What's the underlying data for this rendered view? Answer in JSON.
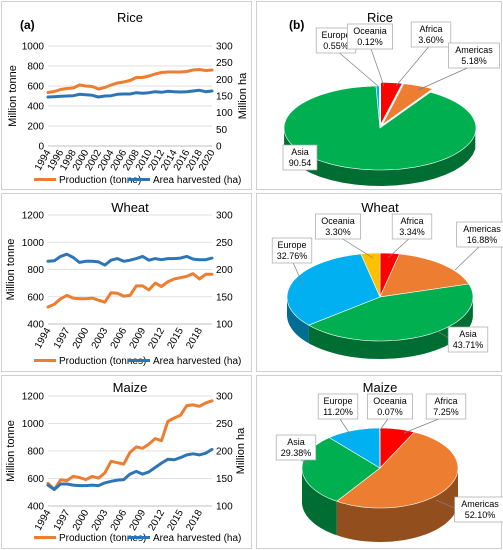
{
  "panels": {
    "left": "(a)",
    "right": "(b)"
  },
  "colors": {
    "production": "#ED7D31",
    "area": "#2E75B6",
    "Asia": "#00B050",
    "Americas": "#ED7D31",
    "Africa": "#FF0000",
    "Oceania": "#FFC000",
    "Europe": "#00B0F0"
  },
  "chart_data": [
    {
      "id": "rice-line",
      "type": "line",
      "title": "Rice",
      "ylabel": "Million tonne",
      "y2label": "Million ha",
      "ylim": [
        0,
        1000
      ],
      "y2lim": [
        0,
        300
      ],
      "yticks": [
        "0",
        "200",
        "400",
        "600",
        "800",
        "1000"
      ],
      "y2ticks": [
        "0",
        "50",
        "100",
        "150",
        "200",
        "250",
        "300"
      ],
      "x": [
        1994,
        1995,
        1996,
        1997,
        1998,
        1999,
        2000,
        2001,
        2002,
        2003,
        2004,
        2005,
        2006,
        2007,
        2008,
        2009,
        2010,
        2011,
        2012,
        2013,
        2014,
        2015,
        2016,
        2017,
        2018,
        2019,
        2020
      ],
      "xticks": [
        "1994",
        "1996",
        "1998",
        "2000",
        "2002",
        "2004",
        "2006",
        "2008",
        "2010",
        "2012",
        "2014",
        "2016",
        "2018",
        "2020"
      ],
      "series": [
        {
          "name": "Production (tonne)",
          "axis": "left",
          "color": "#ED7D31",
          "values": [
            535,
            545,
            565,
            575,
            580,
            610,
            600,
            595,
            570,
            585,
            610,
            630,
            640,
            655,
            685,
            685,
            700,
            720,
            735,
            740,
            740,
            740,
            745,
            760,
            765,
            755,
            760
          ]
        },
        {
          "name": "Area harvested (ha)",
          "axis": "right",
          "color": "#2E75B6",
          "values": [
            147,
            148,
            149,
            150,
            151,
            155,
            154,
            152,
            147,
            150,
            151,
            155,
            156,
            156,
            160,
            158,
            160,
            163,
            161,
            164,
            163,
            162,
            163,
            165,
            167,
            163,
            165
          ]
        }
      ]
    },
    {
      "id": "wheat-line",
      "type": "line",
      "title": "Wheat",
      "ylabel": "Million tonne",
      "ylim": [
        400,
        1200
      ],
      "y2lim": [
        100,
        300
      ],
      "yticks": [
        "400",
        "600",
        "800",
        "1000",
        "1200"
      ],
      "y2ticks": [
        "100",
        "150",
        "200",
        "250",
        "300"
      ],
      "x": [
        1994,
        1995,
        1996,
        1997,
        1998,
        1999,
        2000,
        2001,
        2002,
        2003,
        2004,
        2005,
        2006,
        2007,
        2008,
        2009,
        2010,
        2011,
        2012,
        2013,
        2014,
        2015,
        2016,
        2017,
        2018,
        2019,
        2020
      ],
      "xticks": [
        "1994",
        "1997",
        "2000",
        "2003",
        "2006",
        "2009",
        "2012",
        "2015",
        "2018"
      ],
      "series": [
        {
          "name": "Production (tonnes)",
          "axis": "left",
          "color": "#ED7D31",
          "values": [
            525,
            545,
            585,
            610,
            590,
            585,
            585,
            590,
            575,
            560,
            630,
            625,
            605,
            610,
            680,
            680,
            650,
            700,
            675,
            710,
            730,
            740,
            750,
            770,
            730,
            765,
            765
          ]
        },
        {
          "name": "Area harvested (ha)",
          "axis": "right",
          "color": "#2E75B6",
          "values": [
            215,
            216,
            224,
            228,
            222,
            213,
            215,
            215,
            214,
            208,
            217,
            220,
            215,
            217,
            220,
            224,
            217,
            220,
            218,
            220,
            220,
            221,
            224,
            219,
            218,
            218,
            221
          ]
        }
      ]
    },
    {
      "id": "maize-line",
      "type": "line",
      "title": "Maize",
      "ylabel": "Million tonne",
      "y2label": "Million ha",
      "ylim": [
        400,
        1200
      ],
      "y2lim": [
        100,
        300
      ],
      "yticks": [
        "400",
        "600",
        "800",
        "1000",
        "1200"
      ],
      "y2ticks": [
        "100",
        "150",
        "200",
        "250",
        "300"
      ],
      "x": [
        1994,
        1995,
        1996,
        1997,
        1998,
        1999,
        2000,
        2001,
        2002,
        2003,
        2004,
        2005,
        2006,
        2007,
        2008,
        2009,
        2010,
        2011,
        2012,
        2013,
        2014,
        2015,
        2016,
        2017,
        2018,
        2019,
        2020
      ],
      "xticks": [
        "1994",
        "1997",
        "2000",
        "2003",
        "2006",
        "2009",
        "2012",
        "2015",
        "2018"
      ],
      "series": [
        {
          "name": "Production (tonnes)",
          "axis": "left",
          "color": "#ED7D31",
          "values": [
            565,
            520,
            590,
            585,
            615,
            607,
            592,
            615,
            603,
            640,
            725,
            715,
            705,
            790,
            830,
            820,
            850,
            890,
            875,
            1015,
            1040,
            1060,
            1130,
            1135,
            1125,
            1150,
            1165
          ]
        },
        {
          "name": "Area harvested (ha)",
          "axis": "right",
          "color": "#2E75B6",
          "values": [
            138,
            130,
            140,
            140,
            138,
            137,
            137,
            138,
            137,
            142,
            145,
            147,
            148,
            158,
            163,
            158,
            162,
            170,
            178,
            185,
            184,
            188,
            193,
            195,
            193,
            196,
            203
          ]
        }
      ]
    },
    {
      "id": "rice-pie",
      "type": "pie",
      "title": "Rice",
      "slices": [
        {
          "label": "Asia",
          "name": "Asia",
          "value": 90.54,
          "pct": "90.54",
          "color": "#00B050"
        },
        {
          "label": "Americas",
          "name": "Americas",
          "value": 5.18,
          "pct": "5.18%",
          "color": "#ED7D31"
        },
        {
          "label": "Africa",
          "name": "Africa",
          "value": 3.6,
          "pct": "3.60%",
          "color": "#FF0000"
        },
        {
          "label": "Oceania",
          "name": "Oceania",
          "value": 0.12,
          "pct": "0.12%",
          "color": "#FFC000"
        },
        {
          "label": "Europe",
          "name": "Europe",
          "value": 0.55,
          "pct": "0.55%",
          "color": "#00B0F0"
        }
      ]
    },
    {
      "id": "wheat-pie",
      "type": "pie",
      "title": "Wheat",
      "slices": [
        {
          "label": "Africa",
          "name": "Africa",
          "value": 3.34,
          "pct": "3.34%",
          "color": "#FF0000"
        },
        {
          "label": "Americas",
          "name": "Americas",
          "value": 16.88,
          "pct": "16.88%",
          "color": "#ED7D31"
        },
        {
          "label": "Asia",
          "name": "Asia",
          "value": 43.71,
          "pct": "43.71%",
          "color": "#00B050"
        },
        {
          "label": "Europe",
          "name": "Europe",
          "value": 32.76,
          "pct": "32.76%",
          "color": "#00B0F0"
        },
        {
          "label": "Oceania",
          "name": "Oceania",
          "value": 3.3,
          "pct": "3.30%",
          "color": "#FFC000"
        }
      ]
    },
    {
      "id": "maize-pie",
      "type": "pie",
      "title": "Maize",
      "slices": [
        {
          "label": "Africa",
          "name": "Africa",
          "value": 7.25,
          "pct": "7.25%",
          "color": "#FF0000"
        },
        {
          "label": "Americas",
          "name": "Americas",
          "value": 52.1,
          "pct": "52.10%",
          "color": "#ED7D31"
        },
        {
          "label": "Asia",
          "name": "Asia",
          "value": 29.38,
          "pct": "29.38%",
          "color": "#00B050"
        },
        {
          "label": "Europe",
          "name": "Europe",
          "value": 11.2,
          "pct": "11.20%",
          "color": "#00B0F0"
        },
        {
          "label": "Oceania",
          "name": "Oceania",
          "value": 0.07,
          "pct": "0.07%",
          "color": "#FFC000"
        }
      ]
    }
  ]
}
